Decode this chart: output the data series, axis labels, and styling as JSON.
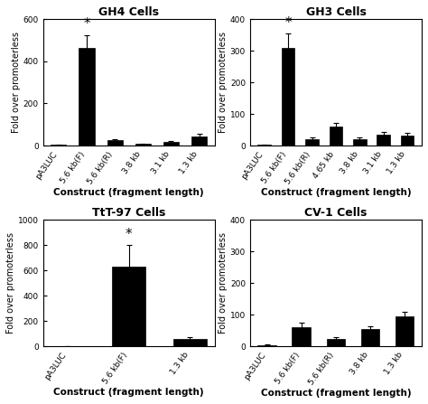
{
  "subplots": [
    {
      "title": "GH4 Cells",
      "categories": [
        "pA3LUC",
        "5.6 kb(F)",
        "5.6 kb(R)",
        "3.8 kb",
        "3.1 kb",
        "1.3 kb"
      ],
      "values": [
        3,
        465,
        25,
        8,
        18,
        45
      ],
      "errors": [
        2,
        60,
        5,
        3,
        5,
        12
      ],
      "star_idx": 1,
      "ylim": [
        0,
        600
      ],
      "yticks": [
        0,
        200,
        400,
        600
      ]
    },
    {
      "title": "GH3 Cells",
      "categories": [
        "pA3LUC",
        "5.6 kb(F)",
        "5.6 kb(R)",
        "4.65 kb",
        "3.8 kb",
        "3.1 kb",
        "1.3 kb"
      ],
      "values": [
        2,
        310,
        20,
        60,
        20,
        35,
        32
      ],
      "errors": [
        1,
        45,
        5,
        12,
        5,
        8,
        8
      ],
      "star_idx": 1,
      "ylim": [
        0,
        400
      ],
      "yticks": [
        0,
        100,
        200,
        300,
        400
      ]
    },
    {
      "title": "TtT-97 Cells",
      "categories": [
        "pA3LUC",
        "5.6 kb(F)",
        "1.3 kb"
      ],
      "values": [
        3,
        630,
        60
      ],
      "errors": [
        2,
        170,
        15
      ],
      "star_idx": 1,
      "ylim": [
        0,
        1000
      ],
      "yticks": [
        0,
        200,
        400,
        600,
        800,
        1000
      ]
    },
    {
      "title": "CV-1 Cells",
      "categories": [
        "pA3LUC",
        "5.6 kb(F)",
        "5.6 kb(R)",
        "3.8 kb",
        "1.3 kb"
      ],
      "values": [
        5,
        60,
        25,
        55,
        95
      ],
      "errors": [
        2,
        15,
        5,
        10,
        15
      ],
      "star_idx": -1,
      "ylim": [
        0,
        400
      ],
      "yticks": [
        0,
        100,
        200,
        300,
        400
      ]
    }
  ],
  "bar_color": "#000000",
  "ylabel": "Fold over promoterless",
  "xlabel": "Construct (fragment length)",
  "title_fontsize": 9,
  "label_fontsize": 7,
  "tick_fontsize": 6.5,
  "xlabel_fontsize": 7.5,
  "bar_width": 0.55
}
